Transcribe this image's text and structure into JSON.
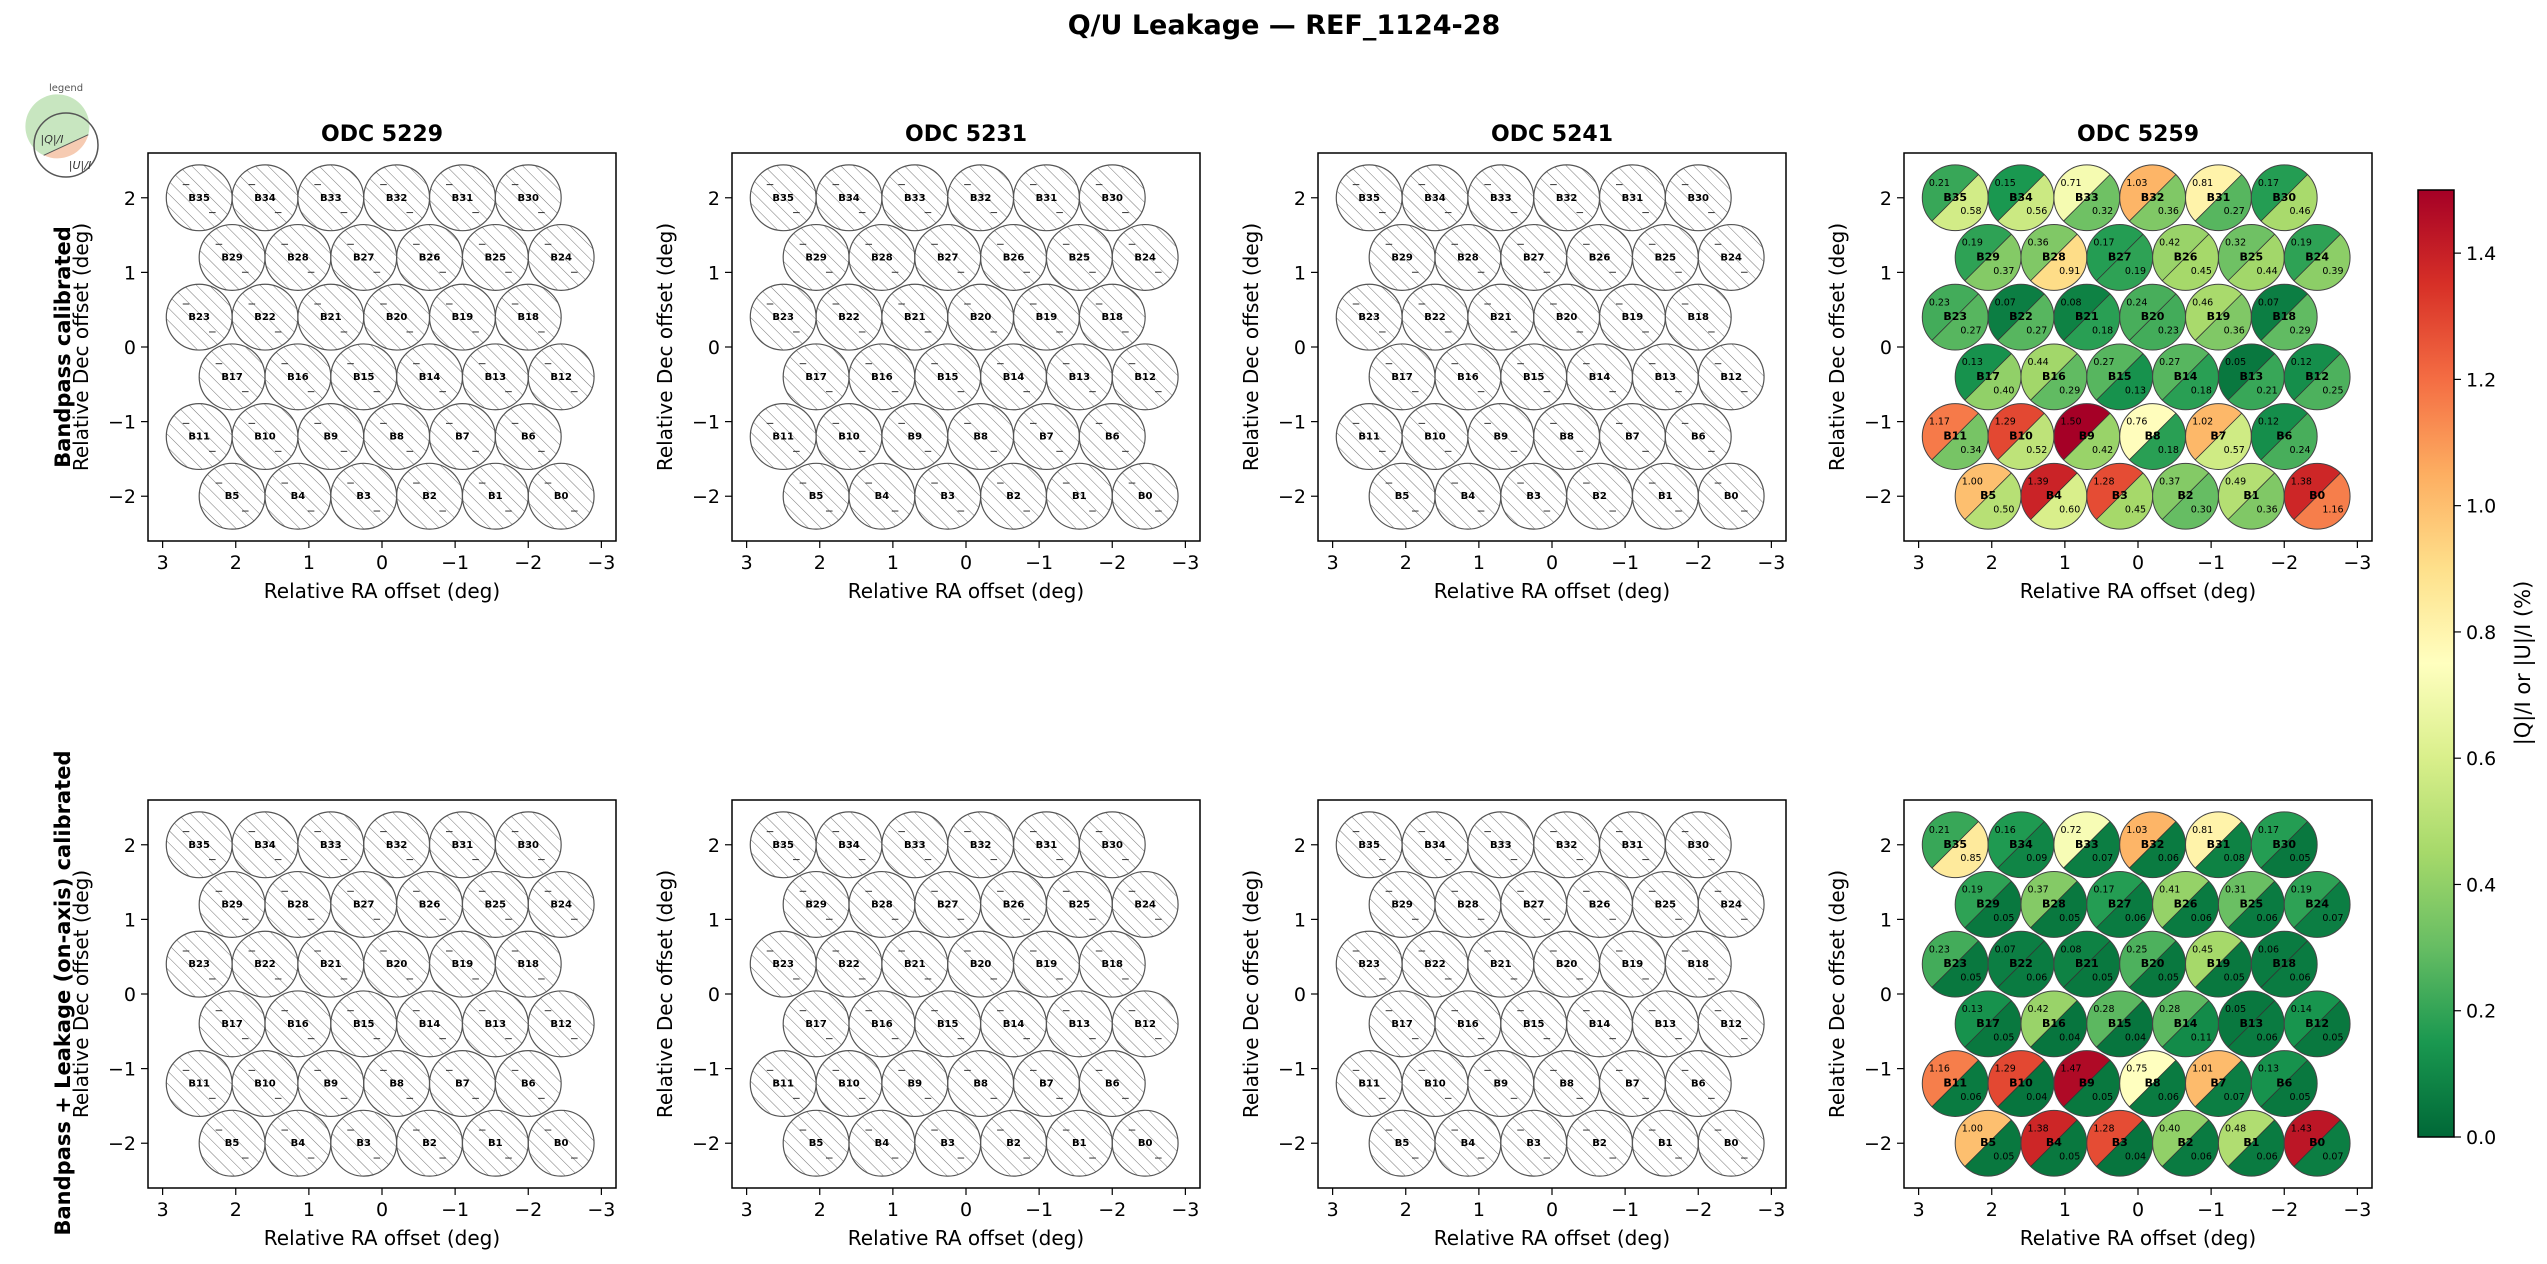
{
  "figure": {
    "title": "Q/U Leakage — REF_1124-28",
    "row_labels": [
      "Bandpass calibrated",
      "Bandpass + Leakage (on-axis) calibrated"
    ],
    "legend": {
      "caption": "legend",
      "q_label": "|Q|/I",
      "u_label": "|U|/I"
    },
    "colorbar": {
      "label": "|Q|/I  or  |U|/I  (%)",
      "range": [
        0,
        1.5
      ],
      "ticks": [
        "0.0",
        "0.2",
        "0.4",
        "0.6",
        "0.8",
        "1.0",
        "1.2",
        "1.4"
      ],
      "colormap": "RdYlGn_r"
    }
  },
  "chart_data": {
    "type": "beam-footprint-grid",
    "xlabel": "Relative RA offset (deg)",
    "ylabel": "Relative Dec offset (deg)",
    "xlim": [
      3.2,
      -3.2
    ],
    "ylim": [
      -2.6,
      2.6
    ],
    "xticks": [
      3,
      2,
      1,
      0,
      -1,
      -2,
      -3
    ],
    "yticks": [
      2,
      1,
      0,
      -1,
      -2
    ],
    "xtick_labels": [
      "3",
      "2",
      "1",
      "0",
      "−1",
      "−2",
      "−3"
    ],
    "ytick_labels": [
      "2",
      "1",
      "0",
      "−1",
      "−2"
    ],
    "beam_radius_deg": 0.45,
    "beams": [
      {
        "name": "B35",
        "x": 2.5,
        "y": 2
      },
      {
        "name": "B34",
        "x": 1.6,
        "y": 2
      },
      {
        "name": "B33",
        "x": 0.7,
        "y": 2
      },
      {
        "name": "B32",
        "x": -0.2,
        "y": 2
      },
      {
        "name": "B31",
        "x": -1.1,
        "y": 2
      },
      {
        "name": "B30",
        "x": -2.0,
        "y": 2
      },
      {
        "name": "B29",
        "x": 2.05,
        "y": 1.2
      },
      {
        "name": "B28",
        "x": 1.15,
        "y": 1.2
      },
      {
        "name": "B27",
        "x": 0.25,
        "y": 1.2
      },
      {
        "name": "B26",
        "x": -0.65,
        "y": 1.2
      },
      {
        "name": "B25",
        "x": -1.55,
        "y": 1.2
      },
      {
        "name": "B24",
        "x": -2.45,
        "y": 1.2
      },
      {
        "name": "B23",
        "x": 2.5,
        "y": 0.4
      },
      {
        "name": "B22",
        "x": 1.6,
        "y": 0.4
      },
      {
        "name": "B21",
        "x": 0.7,
        "y": 0.4
      },
      {
        "name": "B20",
        "x": -0.2,
        "y": 0.4
      },
      {
        "name": "B19",
        "x": -1.1,
        "y": 0.4
      },
      {
        "name": "B18",
        "x": -2.0,
        "y": 0.4
      },
      {
        "name": "B17",
        "x": 2.05,
        "y": -0.4
      },
      {
        "name": "B16",
        "x": 1.15,
        "y": -0.4
      },
      {
        "name": "B15",
        "x": 0.25,
        "y": -0.4
      },
      {
        "name": "B14",
        "x": -0.65,
        "y": -0.4
      },
      {
        "name": "B13",
        "x": -1.55,
        "y": -0.4
      },
      {
        "name": "B12",
        "x": -2.45,
        "y": -0.4
      },
      {
        "name": "B11",
        "x": 2.5,
        "y": -1.2
      },
      {
        "name": "B10",
        "x": 1.6,
        "y": -1.2
      },
      {
        "name": "B9",
        "x": 0.7,
        "y": -1.2
      },
      {
        "name": "B8",
        "x": -0.2,
        "y": -1.2
      },
      {
        "name": "B7",
        "x": -1.1,
        "y": -1.2
      },
      {
        "name": "B6",
        "x": -2.0,
        "y": -1.2
      },
      {
        "name": "B5",
        "x": 2.05,
        "y": -2
      },
      {
        "name": "B4",
        "x": 1.15,
        "y": -2
      },
      {
        "name": "B3",
        "x": 0.25,
        "y": -2
      },
      {
        "name": "B2",
        "x": -0.65,
        "y": -2
      },
      {
        "name": "B1",
        "x": -1.55,
        "y": -2
      },
      {
        "name": "B0",
        "x": -2.45,
        "y": -2
      }
    ],
    "panels": [
      {
        "row": 0,
        "col": 0,
        "title": "ODC 5229",
        "has_data": false
      },
      {
        "row": 0,
        "col": 1,
        "title": "ODC 5231",
        "has_data": false
      },
      {
        "row": 0,
        "col": 2,
        "title": "ODC 5241",
        "has_data": false
      },
      {
        "row": 0,
        "col": 3,
        "title": "ODC 5259",
        "has_data": true,
        "q": [
          0.21,
          0.15,
          0.71,
          1.03,
          0.81,
          0.17,
          0.19,
          0.36,
          0.17,
          0.42,
          0.32,
          0.19,
          0.23,
          0.07,
          0.08,
          0.24,
          0.46,
          0.07,
          0.13,
          0.44,
          0.27,
          0.27,
          0.05,
          0.12,
          1.17,
          1.29,
          1.5,
          0.76,
          1.02,
          0.12,
          1.0,
          1.39,
          1.28,
          0.37,
          0.49,
          1.38
        ],
        "u": [
          0.58,
          0.56,
          0.32,
          0.36,
          0.27,
          0.46,
          0.37,
          0.91,
          0.19,
          0.45,
          0.44,
          0.39,
          0.27,
          0.27,
          0.18,
          0.23,
          0.36,
          0.29,
          0.4,
          0.29,
          0.13,
          0.18,
          0.21,
          0.25,
          0.34,
          0.52,
          0.42,
          0.18,
          0.57,
          0.24,
          0.5,
          0.6,
          0.45,
          0.3,
          0.36,
          1.16
        ]
      },
      {
        "row": 1,
        "col": 0,
        "title": "",
        "has_data": false
      },
      {
        "row": 1,
        "col": 1,
        "title": "",
        "has_data": false
      },
      {
        "row": 1,
        "col": 2,
        "title": "",
        "has_data": false
      },
      {
        "row": 1,
        "col": 3,
        "title": "",
        "has_data": true,
        "q": [
          0.21,
          0.16,
          0.72,
          1.03,
          0.81,
          0.17,
          0.19,
          0.37,
          0.17,
          0.41,
          0.31,
          0.19,
          0.23,
          0.07,
          0.08,
          0.25,
          0.45,
          0.06,
          0.13,
          0.42,
          0.28,
          0.28,
          0.05,
          0.14,
          1.16,
          1.29,
          1.47,
          0.75,
          1.01,
          0.13,
          1.0,
          1.38,
          1.28,
          0.4,
          0.48,
          1.43
        ],
        "u": [
          0.85,
          0.09,
          0.07,
          0.06,
          0.08,
          0.05,
          0.05,
          0.05,
          0.06,
          0.06,
          0.06,
          0.07,
          0.05,
          0.06,
          0.05,
          0.05,
          0.05,
          0.06,
          0.05,
          0.04,
          0.04,
          0.11,
          0.06,
          0.05,
          0.06,
          0.04,
          0.05,
          0.06,
          0.07,
          0.05,
          0.05,
          0.05,
          0.04,
          0.06,
          0.06,
          0.07
        ]
      }
    ]
  }
}
